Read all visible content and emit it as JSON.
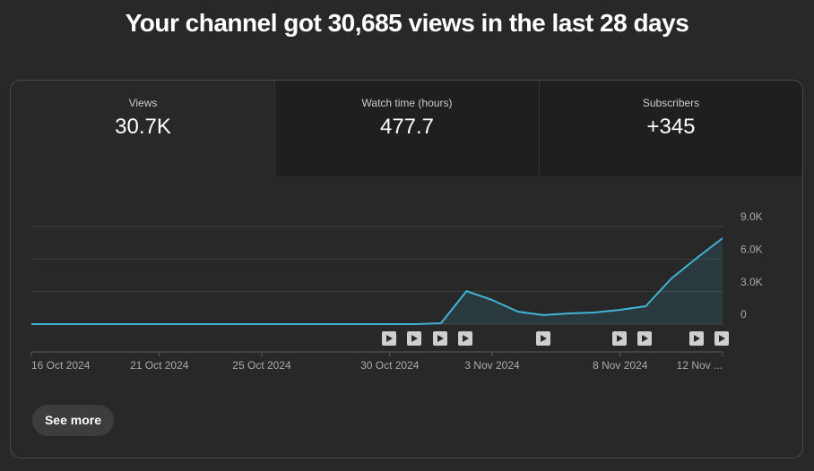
{
  "title": "Your channel got 30,685 views in the last 28 days",
  "tabs": [
    {
      "label": "Views",
      "value": "30.7K"
    },
    {
      "label": "Watch time (hours)",
      "value": "477.7"
    },
    {
      "label": "Subscribers",
      "value": "+345"
    }
  ],
  "button": "See more",
  "chart_data": {
    "type": "line",
    "categories": [
      "16 Oct 2024",
      null,
      null,
      null,
      null,
      "21 Oct 2024",
      null,
      null,
      null,
      "25 Oct 2024",
      null,
      null,
      null,
      null,
      "30 Oct 2024",
      null,
      null,
      null,
      "3 Nov 2024",
      null,
      null,
      null,
      null,
      "8 Nov 2024",
      null,
      null,
      null,
      "12 Nov ..."
    ],
    "values": [
      0,
      0,
      0,
      0,
      0,
      0,
      0,
      0,
      0,
      0,
      0,
      0,
      0,
      0,
      0,
      0,
      80,
      3050,
      2230,
      1160,
      830,
      990,
      1070,
      1320,
      1650,
      4210,
      6110,
      7930
    ],
    "color": "#41b4d8",
    "ylim": [
      0,
      9000
    ],
    "yticks": [
      0,
      {
        "value": 3000,
        "label": "3.0K"
      },
      {
        "value": 6000,
        "label": "6.0K"
      },
      {
        "value": 9000,
        "label": "9.0K"
      }
    ],
    "grid": true
  }
}
